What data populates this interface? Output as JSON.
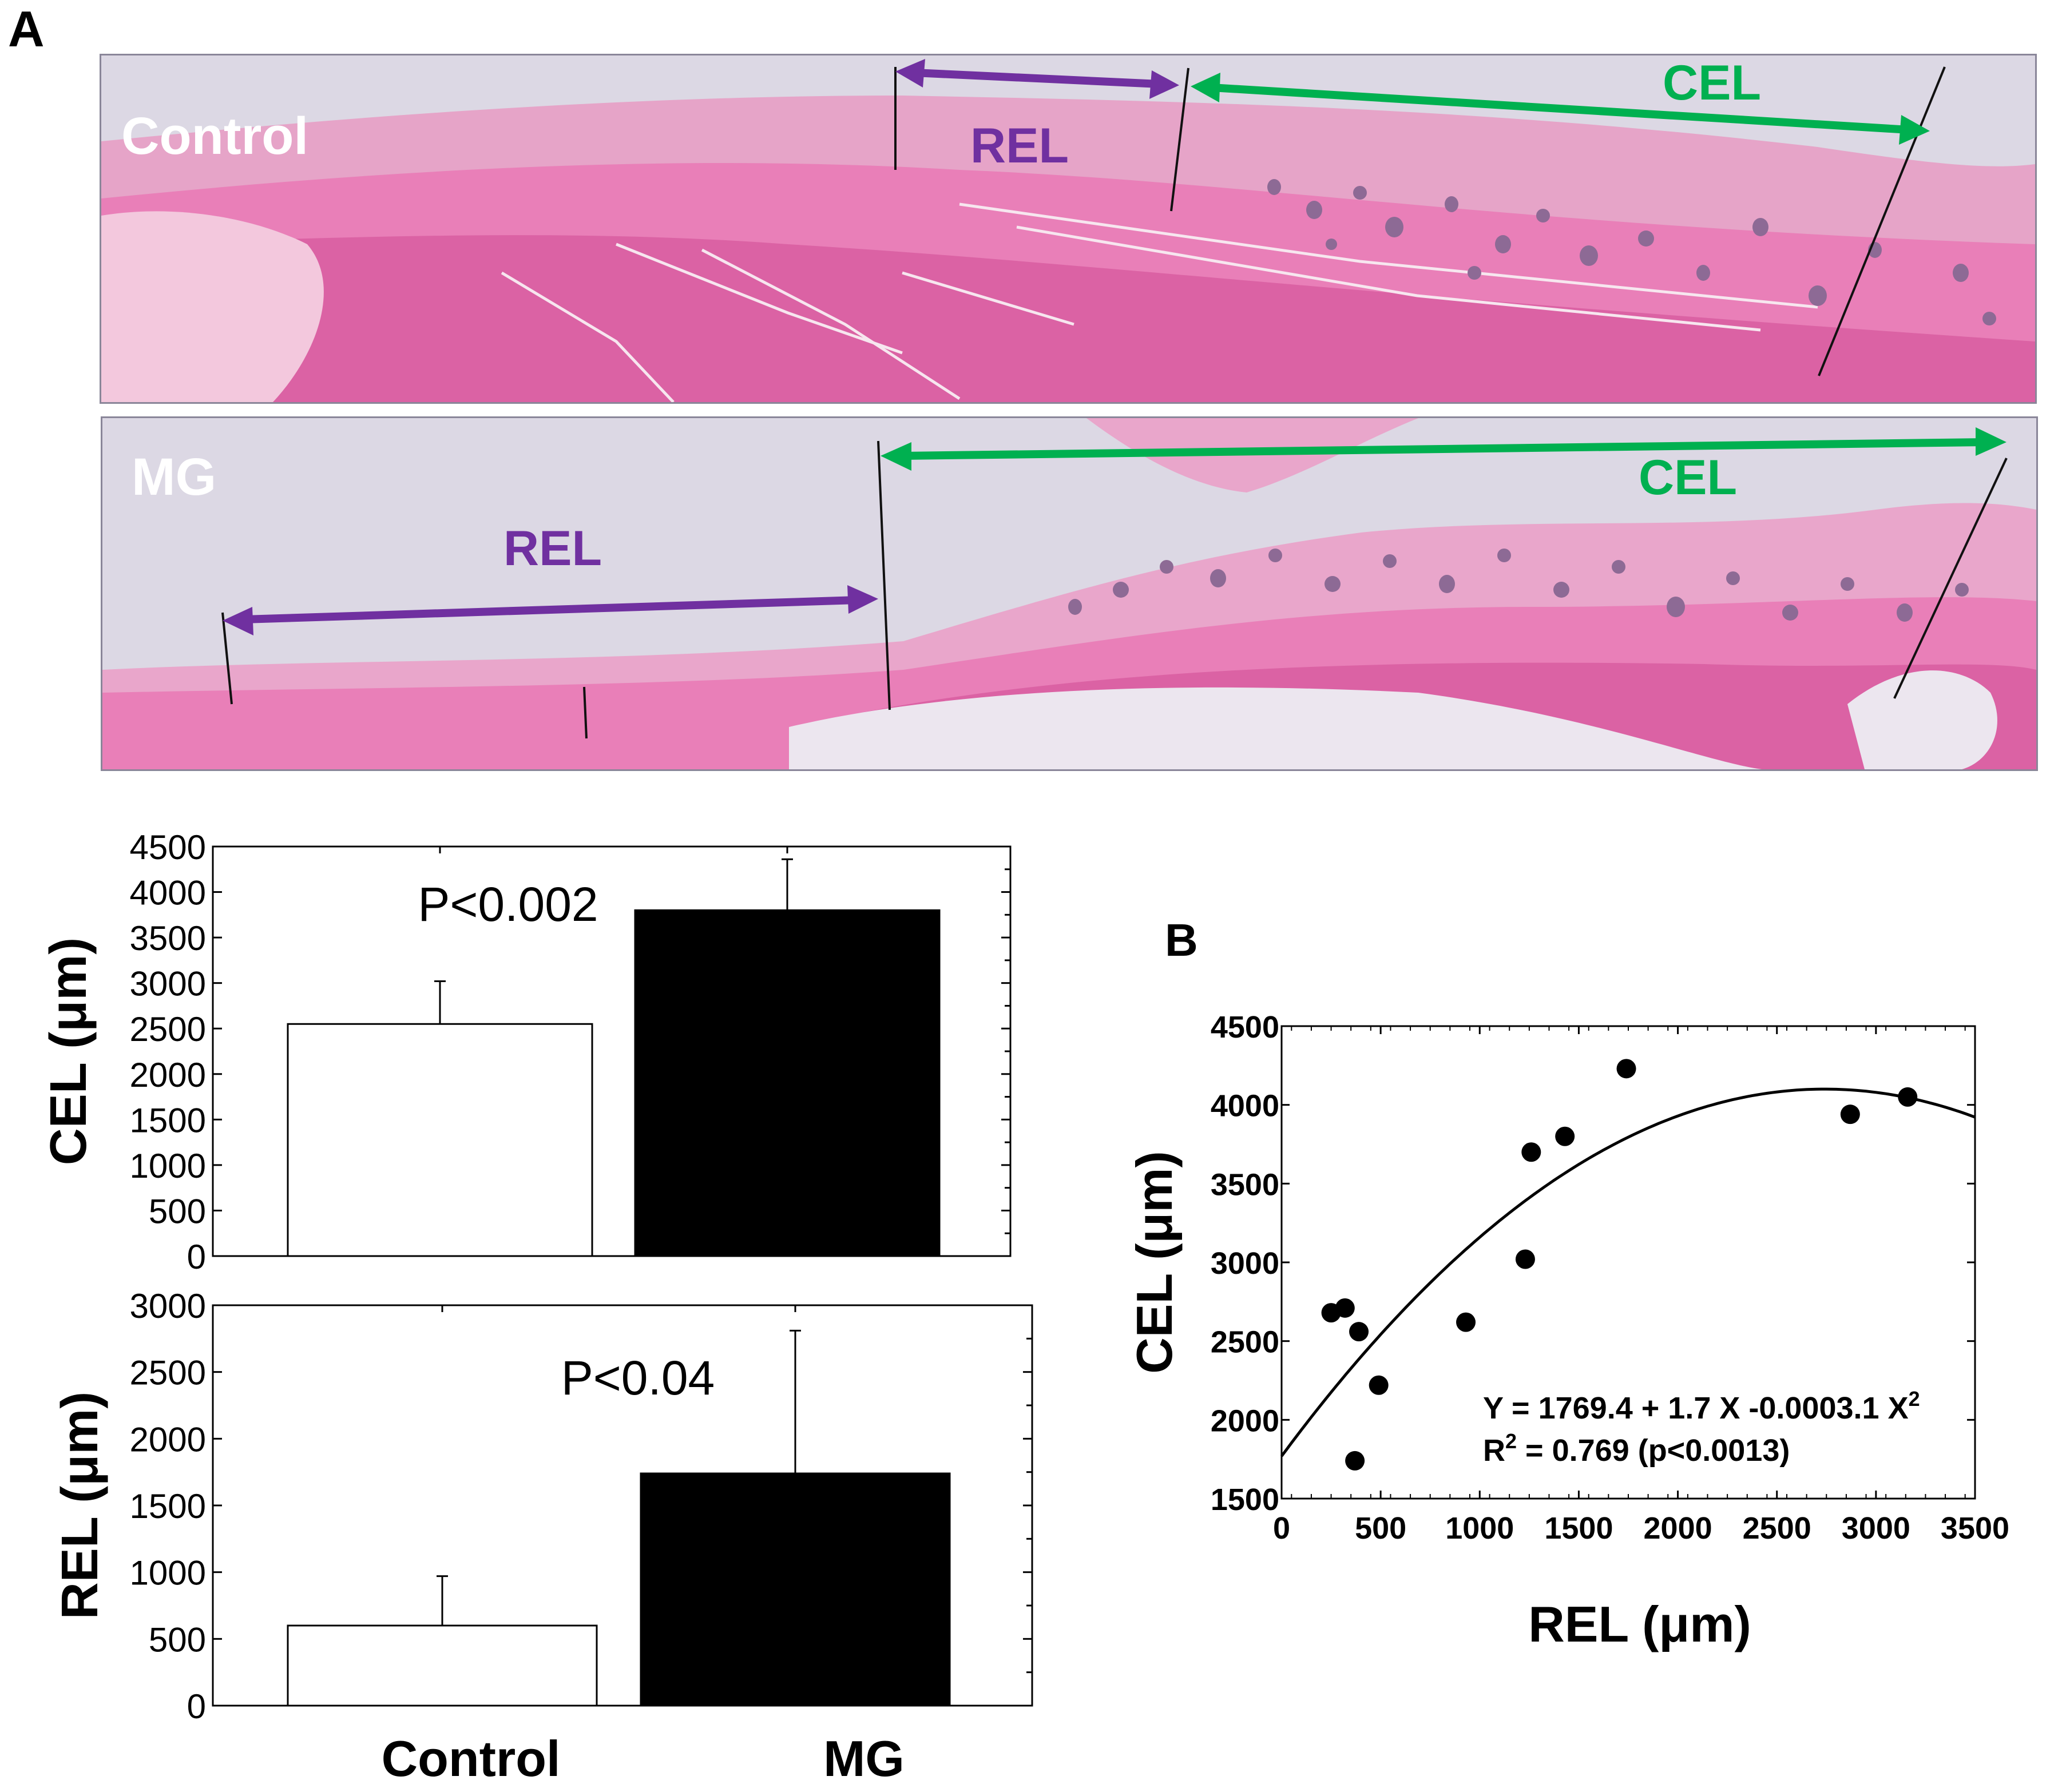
{
  "panels": {
    "a_letter": "A",
    "b_letter": "B"
  },
  "micrographs": [
    {
      "id": "control",
      "label": "Control",
      "rel_label": "REL",
      "cel_label": "CEL"
    },
    {
      "id": "mg",
      "label": "MG",
      "rel_label": "REL",
      "cel_label": "CEL"
    }
  ],
  "colors": {
    "rel_arrow": "#7030a0",
    "cel_arrow": "#00b050",
    "tissue_pink": "#e87db5",
    "tissue_dark": "#d65a9e",
    "background_slide": "#d9d6e2",
    "control_bar": "#ffffff",
    "mg_bar": "#000000"
  },
  "chart_data": [
    {
      "id": "cel-bar",
      "type": "bar",
      "categories": [
        "Control",
        "MG"
      ],
      "values": [
        2550,
        3800
      ],
      "errors": [
        470,
        560
      ],
      "ylabel": "CEL (μm)",
      "ylim": [
        0,
        4500
      ],
      "yticks": [
        "0",
        "500",
        "1000",
        "1500",
        "2000",
        "2500",
        "3000",
        "3500",
        "4000",
        "4500"
      ],
      "annotation": "P<0.002"
    },
    {
      "id": "rel-bar",
      "type": "bar",
      "categories": [
        "Control",
        "MG"
      ],
      "values": [
        600,
        1740
      ],
      "errors": [
        370,
        1070
      ],
      "ylabel": "REL (μm)",
      "xlabels": [
        "Control",
        "MG"
      ],
      "ylim": [
        0,
        3000
      ],
      "yticks": [
        "0",
        "500",
        "1000",
        "1500",
        "2000",
        "2500",
        "3000"
      ],
      "annotation": "P<0.04"
    },
    {
      "id": "scatter",
      "type": "scatter",
      "xlabel": "REL (μm)",
      "ylabel": "CEL (μm)",
      "xlim": [
        0,
        3500
      ],
      "ylim": [
        1500,
        4500
      ],
      "xticks": [
        "0",
        "500",
        "1000",
        "1500",
        "2000",
        "2500",
        "3000",
        "3500"
      ],
      "yticks": [
        "1500",
        "2000",
        "2500",
        "3000",
        "3500",
        "4000",
        "4500"
      ],
      "points": [
        {
          "x": 250,
          "y": 2680
        },
        {
          "x": 320,
          "y": 2710
        },
        {
          "x": 390,
          "y": 2560
        },
        {
          "x": 490,
          "y": 2220
        },
        {
          "x": 370,
          "y": 1740
        },
        {
          "x": 930,
          "y": 2620
        },
        {
          "x": 1230,
          "y": 3020
        },
        {
          "x": 1260,
          "y": 3700
        },
        {
          "x": 1430,
          "y": 3800
        },
        {
          "x": 1740,
          "y": 4230
        },
        {
          "x": 2870,
          "y": 3940
        },
        {
          "x": 3160,
          "y": 4050
        }
      ],
      "fit": {
        "a": 1769.4,
        "b": 1.7,
        "c": -0.00031
      },
      "equation": "Y = 1769.4 + 1.7 X -0.0003.1 X",
      "equation_sup": "2",
      "r2_prefix": "R",
      "r2_sup": "2",
      "r2_text": " = 0.769 (p<0.0013)"
    }
  ]
}
